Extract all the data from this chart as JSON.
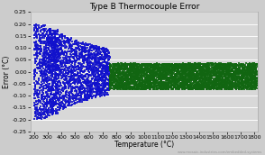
{
  "title": "Type B Thermocouple Error",
  "xlabel": "Temperature (°C)",
  "ylabel": "Error (°C)",
  "xlim": [
    175,
    1825
  ],
  "ylim": [
    -0.25,
    0.25
  ],
  "xticks": [
    200,
    300,
    400,
    500,
    600,
    700,
    800,
    900,
    1000,
    1100,
    1200,
    1300,
    1400,
    1500,
    1600,
    1700,
    1800
  ],
  "yticks": [
    -0.25,
    -0.2,
    -0.15,
    -0.1,
    -0.05,
    0.0,
    0.05,
    0.1,
    0.15,
    0.2,
    0.25
  ],
  "blue_color": "#1111cc",
  "green_color": "#116611",
  "background_color": "#cccccc",
  "plot_bg_color": "#d8d8d8",
  "grid_color": "#bbbbbb",
  "title_fontsize": 6.5,
  "axis_fontsize": 5.5,
  "tick_fontsize": 4.5,
  "watermark": "www.mosaic-industries.com/embedded-systems"
}
